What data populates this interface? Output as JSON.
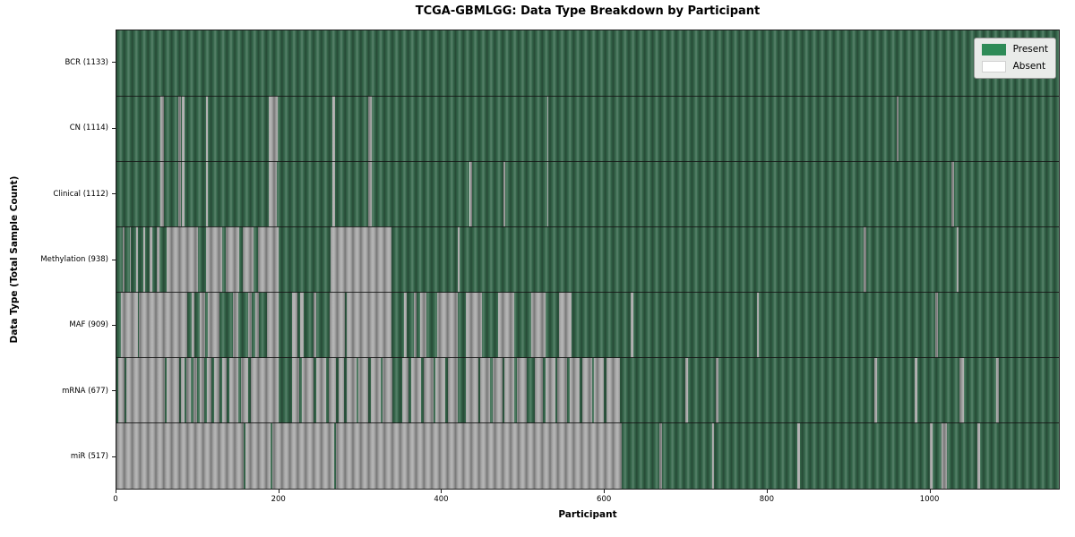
{
  "chart_data": {
    "type": "heatmap",
    "title": "TCGA-GBMLGG: Data Type Breakdown by Participant",
    "xlabel": "Participant",
    "ylabel": "Data Type (Total Sample Count)",
    "x_max": 1160,
    "x_ticks": [
      0,
      200,
      400,
      600,
      800,
      1000
    ],
    "grid": false,
    "legend_position": "upper right",
    "legend": [
      {
        "label": "Present",
        "color": "#2e8b57"
      },
      {
        "label": "Absent",
        "color": "#ffffff"
      }
    ],
    "colors": {
      "present_fill": "#36684c",
      "absent_fill": "#a8a8a8",
      "legend_bg": "#e9ebe9",
      "spine": "#1c1c1c"
    },
    "rows": [
      {
        "key": "bcr",
        "label": "BCR (1133)",
        "data_type": "BCR",
        "total_sample_count": 1133,
        "segments": [
          [
            0,
            1160,
            1
          ]
        ]
      },
      {
        "key": "cn",
        "label": "CN (1114)",
        "data_type": "CN",
        "total_sample_count": 1114,
        "segments": [
          [
            0,
            54,
            1
          ],
          [
            54,
            58,
            0
          ],
          [
            58,
            76,
            1
          ],
          [
            76,
            79,
            0
          ],
          [
            79,
            81,
            1
          ],
          [
            81,
            84,
            0
          ],
          [
            84,
            110,
            1
          ],
          [
            110,
            113,
            0
          ],
          [
            113,
            188,
            1
          ],
          [
            188,
            198,
            0
          ],
          [
            198,
            266,
            1
          ],
          [
            266,
            269,
            0
          ],
          [
            269,
            310,
            1
          ],
          [
            310,
            314,
            0
          ],
          [
            314,
            530,
            1
          ],
          [
            530,
            532,
            0
          ],
          [
            532,
            960,
            1
          ],
          [
            960,
            963,
            0
          ],
          [
            963,
            1160,
            1
          ]
        ]
      },
      {
        "key": "clinical",
        "label": "Clinical (1112)",
        "data_type": "Clinical",
        "total_sample_count": 1112,
        "segments": [
          [
            0,
            54,
            1
          ],
          [
            54,
            58,
            0
          ],
          [
            58,
            76,
            1
          ],
          [
            76,
            79,
            0
          ],
          [
            79,
            81,
            1
          ],
          [
            81,
            84,
            0
          ],
          [
            84,
            110,
            1
          ],
          [
            110,
            113,
            0
          ],
          [
            113,
            188,
            1
          ],
          [
            188,
            197,
            0
          ],
          [
            197,
            266,
            1
          ],
          [
            266,
            269,
            0
          ],
          [
            269,
            310,
            1
          ],
          [
            310,
            314,
            0
          ],
          [
            314,
            435,
            1
          ],
          [
            435,
            438,
            0
          ],
          [
            438,
            476,
            1
          ],
          [
            476,
            479,
            0
          ],
          [
            479,
            530,
            1
          ],
          [
            530,
            532,
            0
          ],
          [
            532,
            1028,
            1
          ],
          [
            1028,
            1031,
            0
          ],
          [
            1031,
            1160,
            1
          ]
        ]
      },
      {
        "key": "methylation",
        "label": "Methylation (938)",
        "data_type": "Methylation",
        "total_sample_count": 938,
        "segments": [
          [
            0,
            8,
            1
          ],
          [
            8,
            10,
            0
          ],
          [
            10,
            16,
            1
          ],
          [
            16,
            18,
            0
          ],
          [
            18,
            24,
            1
          ],
          [
            24,
            26,
            0
          ],
          [
            26,
            33,
            1
          ],
          [
            33,
            35,
            0
          ],
          [
            35,
            41,
            1
          ],
          [
            41,
            44,
            0
          ],
          [
            44,
            50,
            1
          ],
          [
            50,
            53,
            0
          ],
          [
            53,
            62,
            1
          ],
          [
            62,
            100,
            0
          ],
          [
            100,
            110,
            1
          ],
          [
            110,
            130,
            0
          ],
          [
            130,
            134,
            1
          ],
          [
            134,
            151,
            0
          ],
          [
            151,
            155,
            1
          ],
          [
            155,
            169,
            0
          ],
          [
            169,
            174,
            1
          ],
          [
            174,
            200,
            0
          ],
          [
            200,
            264,
            1
          ],
          [
            264,
            339,
            0
          ],
          [
            339,
            420,
            1
          ],
          [
            420,
            422,
            0
          ],
          [
            422,
            920,
            1
          ],
          [
            920,
            923,
            0
          ],
          [
            923,
            1034,
            1
          ],
          [
            1034,
            1037,
            0
          ],
          [
            1037,
            1160,
            1
          ]
        ]
      },
      {
        "key": "maf",
        "label": "MAF (909)",
        "data_type": "MAF",
        "total_sample_count": 909,
        "segments": [
          [
            0,
            5,
            1
          ],
          [
            5,
            26,
            0
          ],
          [
            26,
            28,
            1
          ],
          [
            28,
            87,
            0
          ],
          [
            87,
            93,
            1
          ],
          [
            93,
            96,
            0
          ],
          [
            96,
            103,
            1
          ],
          [
            103,
            109,
            0
          ],
          [
            109,
            112,
            1
          ],
          [
            112,
            127,
            0
          ],
          [
            127,
            143,
            1
          ],
          [
            143,
            150,
            0
          ],
          [
            150,
            162,
            1
          ],
          [
            162,
            166,
            0
          ],
          [
            166,
            171,
            1
          ],
          [
            171,
            175,
            0
          ],
          [
            175,
            185,
            1
          ],
          [
            185,
            200,
            0
          ],
          [
            200,
            216,
            1
          ],
          [
            216,
            223,
            0
          ],
          [
            223,
            226,
            1
          ],
          [
            226,
            231,
            0
          ],
          [
            231,
            243,
            1
          ],
          [
            243,
            246,
            0
          ],
          [
            246,
            262,
            1
          ],
          [
            262,
            281,
            0
          ],
          [
            281,
            283,
            1
          ],
          [
            283,
            339,
            0
          ],
          [
            339,
            354,
            1
          ],
          [
            354,
            357,
            0
          ],
          [
            357,
            366,
            1
          ],
          [
            366,
            369,
            0
          ],
          [
            369,
            374,
            1
          ],
          [
            374,
            382,
            0
          ],
          [
            382,
            395,
            1
          ],
          [
            395,
            420,
            0
          ],
          [
            420,
            430,
            1
          ],
          [
            430,
            450,
            0
          ],
          [
            450,
            470,
            1
          ],
          [
            470,
            490,
            0
          ],
          [
            490,
            510,
            1
          ],
          [
            510,
            528,
            0
          ],
          [
            528,
            545,
            1
          ],
          [
            545,
            560,
            0
          ],
          [
            560,
            633,
            1
          ],
          [
            633,
            636,
            0
          ],
          [
            636,
            788,
            1
          ],
          [
            788,
            791,
            0
          ],
          [
            791,
            1008,
            1
          ],
          [
            1008,
            1011,
            0
          ],
          [
            1011,
            1160,
            1
          ]
        ]
      },
      {
        "key": "mrna",
        "label": "mRNA (677)",
        "data_type": "mRNA",
        "total_sample_count": 677,
        "segments": [
          [
            0,
            2,
            1
          ],
          [
            2,
            10,
            0
          ],
          [
            10,
            12,
            1
          ],
          [
            12,
            60,
            0
          ],
          [
            60,
            62,
            1
          ],
          [
            62,
            77,
            0
          ],
          [
            77,
            79,
            1
          ],
          [
            79,
            84,
            0
          ],
          [
            84,
            86,
            1
          ],
          [
            86,
            92,
            0
          ],
          [
            92,
            95,
            1
          ],
          [
            95,
            99,
            0
          ],
          [
            99,
            102,
            1
          ],
          [
            102,
            108,
            0
          ],
          [
            108,
            111,
            1
          ],
          [
            111,
            117,
            0
          ],
          [
            117,
            120,
            1
          ],
          [
            120,
            127,
            0
          ],
          [
            127,
            130,
            1
          ],
          [
            130,
            136,
            0
          ],
          [
            136,
            139,
            1
          ],
          [
            139,
            150,
            0
          ],
          [
            150,
            153,
            1
          ],
          [
            153,
            162,
            0
          ],
          [
            162,
            165,
            1
          ],
          [
            165,
            200,
            0
          ],
          [
            200,
            216,
            1
          ],
          [
            216,
            225,
            0
          ],
          [
            225,
            228,
            1
          ],
          [
            228,
            243,
            0
          ],
          [
            243,
            246,
            1
          ],
          [
            246,
            258,
            0
          ],
          [
            258,
            261,
            1
          ],
          [
            261,
            270,
            0
          ],
          [
            270,
            273,
            1
          ],
          [
            273,
            280,
            0
          ],
          [
            280,
            283,
            1
          ],
          [
            283,
            295,
            0
          ],
          [
            295,
            298,
            1
          ],
          [
            298,
            310,
            0
          ],
          [
            310,
            313,
            1
          ],
          [
            313,
            325,
            0
          ],
          [
            325,
            328,
            1
          ],
          [
            328,
            340,
            0
          ],
          [
            340,
            352,
            1
          ],
          [
            352,
            360,
            0
          ],
          [
            360,
            363,
            1
          ],
          [
            363,
            375,
            0
          ],
          [
            375,
            378,
            1
          ],
          [
            378,
            390,
            0
          ],
          [
            390,
            393,
            1
          ],
          [
            393,
            405,
            0
          ],
          [
            405,
            408,
            1
          ],
          [
            408,
            420,
            0
          ],
          [
            420,
            430,
            1
          ],
          [
            430,
            445,
            0
          ],
          [
            445,
            448,
            1
          ],
          [
            448,
            460,
            0
          ],
          [
            460,
            463,
            1
          ],
          [
            463,
            475,
            0
          ],
          [
            475,
            478,
            1
          ],
          [
            478,
            490,
            0
          ],
          [
            490,
            493,
            1
          ],
          [
            493,
            505,
            0
          ],
          [
            505,
            515,
            1
          ],
          [
            515,
            525,
            0
          ],
          [
            525,
            528,
            1
          ],
          [
            528,
            540,
            0
          ],
          [
            540,
            543,
            1
          ],
          [
            543,
            555,
            0
          ],
          [
            555,
            558,
            1
          ],
          [
            558,
            570,
            0
          ],
          [
            570,
            573,
            1
          ],
          [
            573,
            585,
            0
          ],
          [
            585,
            588,
            1
          ],
          [
            588,
            600,
            0
          ],
          [
            600,
            603,
            1
          ],
          [
            603,
            620,
            0
          ],
          [
            620,
            700,
            1
          ],
          [
            700,
            703,
            0
          ],
          [
            703,
            738,
            1
          ],
          [
            738,
            741,
            0
          ],
          [
            741,
            933,
            1
          ],
          [
            933,
            936,
            0
          ],
          [
            936,
            983,
            1
          ],
          [
            983,
            986,
            0
          ],
          [
            986,
            1038,
            1
          ],
          [
            1038,
            1043,
            0
          ],
          [
            1043,
            1083,
            1
          ],
          [
            1083,
            1086,
            0
          ],
          [
            1086,
            1160,
            1
          ]
        ]
      },
      {
        "key": "mir",
        "label": "miR (517)",
        "data_type": "miR",
        "total_sample_count": 517,
        "segments": [
          [
            0,
            157,
            0
          ],
          [
            157,
            159,
            1
          ],
          [
            159,
            190,
            0
          ],
          [
            190,
            192,
            1
          ],
          [
            192,
            268,
            0
          ],
          [
            268,
            270,
            1
          ],
          [
            270,
            622,
            0
          ],
          [
            622,
            668,
            1
          ],
          [
            668,
            671,
            0
          ],
          [
            671,
            733,
            1
          ],
          [
            733,
            736,
            0
          ],
          [
            736,
            838,
            1
          ],
          [
            838,
            841,
            0
          ],
          [
            841,
            1001,
            1
          ],
          [
            1001,
            1004,
            0
          ],
          [
            1004,
            1016,
            1
          ],
          [
            1016,
            1022,
            0
          ],
          [
            1022,
            1060,
            1
          ],
          [
            1060,
            1063,
            0
          ],
          [
            1063,
            1160,
            1
          ]
        ]
      }
    ]
  }
}
